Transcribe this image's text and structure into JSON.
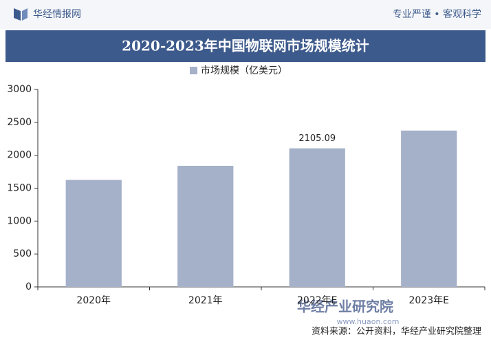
{
  "header": {
    "logo": "华经情报网",
    "slogan": "专业严谨 • 客观科学"
  },
  "chart_data": {
    "type": "bar",
    "title": "2020-2023年中国物联网市场规模统计",
    "categories": [
      "2020年",
      "2021年",
      "2022年E",
      "2023年E"
    ],
    "series": [
      {
        "name": "市场规模（亿美元）",
        "color": "#a5b0c9",
        "values": [
          1625,
          1840,
          2105.09,
          2375
        ]
      }
    ],
    "value_labels": [
      null,
      null,
      "2105.09",
      null
    ],
    "ylim": [
      0,
      3000
    ],
    "yticks": [
      0,
      500,
      1000,
      1500,
      2000,
      2500,
      3000
    ],
    "grid": false,
    "legend": "top",
    "source": "资料来源：公开资料，华经产业研究院整理"
  },
  "brand": {
    "name": "华经产业研究院",
    "url": "www.huaon.com"
  }
}
